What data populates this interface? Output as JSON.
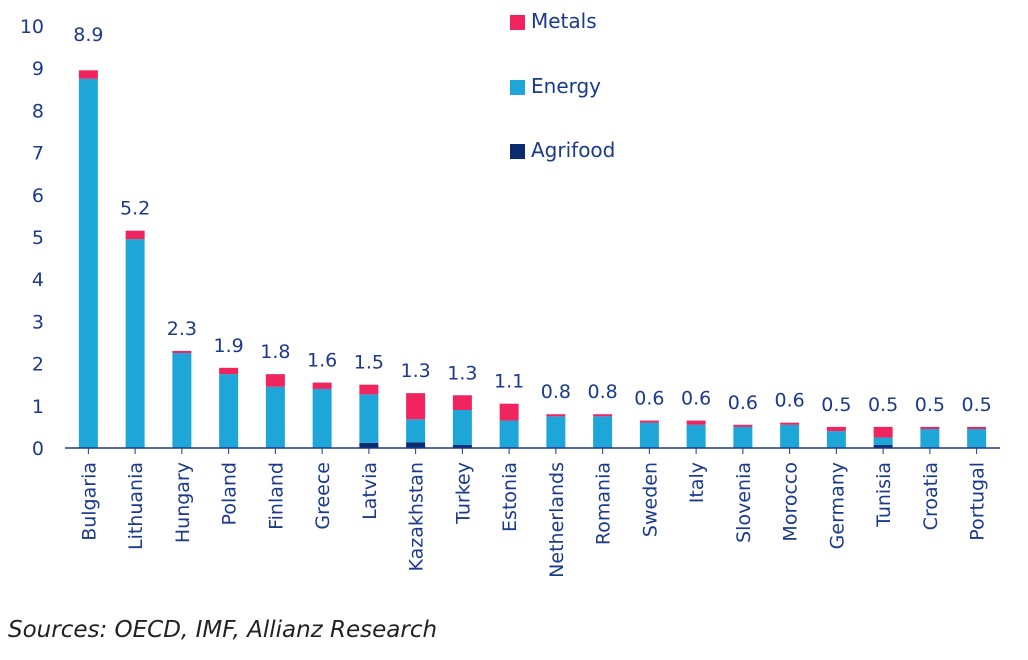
{
  "chart_data": {
    "type": "bar",
    "stacked": true,
    "categories": [
      "Bulgaria",
      "Lithuania",
      "Hungary",
      "Poland",
      "Finland",
      "Greece",
      "Latvia",
      "Kazakhstan",
      "Turkey",
      "Estonia",
      "Netherlands",
      "Romania",
      "Sweden",
      "Italy",
      "Slovenia",
      "Morocco",
      "Germany",
      "Tunisia",
      "Croatia",
      "Portugal"
    ],
    "series": [
      {
        "name": "Agrifood",
        "color": "#0a2c6e",
        "values": [
          0,
          0,
          0,
          0,
          0,
          0,
          0.12,
          0.13,
          0.07,
          0,
          0,
          0,
          0,
          0,
          0,
          0,
          0,
          0.07,
          0,
          0
        ]
      },
      {
        "name": "Energy",
        "color": "#1ea6d9",
        "values": [
          8.75,
          4.95,
          2.25,
          1.75,
          1.45,
          1.4,
          1.15,
          0.55,
          0.83,
          0.65,
          0.75,
          0.75,
          0.6,
          0.55,
          0.5,
          0.55,
          0.4,
          0.18,
          0.45,
          0.45
        ]
      },
      {
        "name": "Metals",
        "color": "#f0245e",
        "values": [
          0.2,
          0.2,
          0.05,
          0.15,
          0.3,
          0.15,
          0.23,
          0.62,
          0.35,
          0.4,
          0.05,
          0.05,
          0.05,
          0.1,
          0.05,
          0.05,
          0.1,
          0.25,
          0.05,
          0.05
        ]
      }
    ],
    "data_labels": [
      "8.9",
      "5.2",
      "2.3",
      "1.9",
      "1.8",
      "1.6",
      "1.5",
      "1.3",
      "1.3",
      "1.1",
      "0.8",
      "0.8",
      "0.6",
      "0.6",
      "0.6",
      "0.6",
      "0.5",
      "0.5",
      "0.5",
      "0.5"
    ],
    "yticks": [
      "0",
      "1",
      "2",
      "3",
      "4",
      "5",
      "6",
      "7",
      "8",
      "9",
      "10"
    ],
    "ylim": [
      0,
      10
    ],
    "legend": [
      "Metals",
      "Energy",
      "Agrifood"
    ],
    "legend_position": "top-center",
    "grid": false,
    "axis_color": "#1b3a8c"
  },
  "source": "Sources: OECD, IMF, Allianz Research"
}
